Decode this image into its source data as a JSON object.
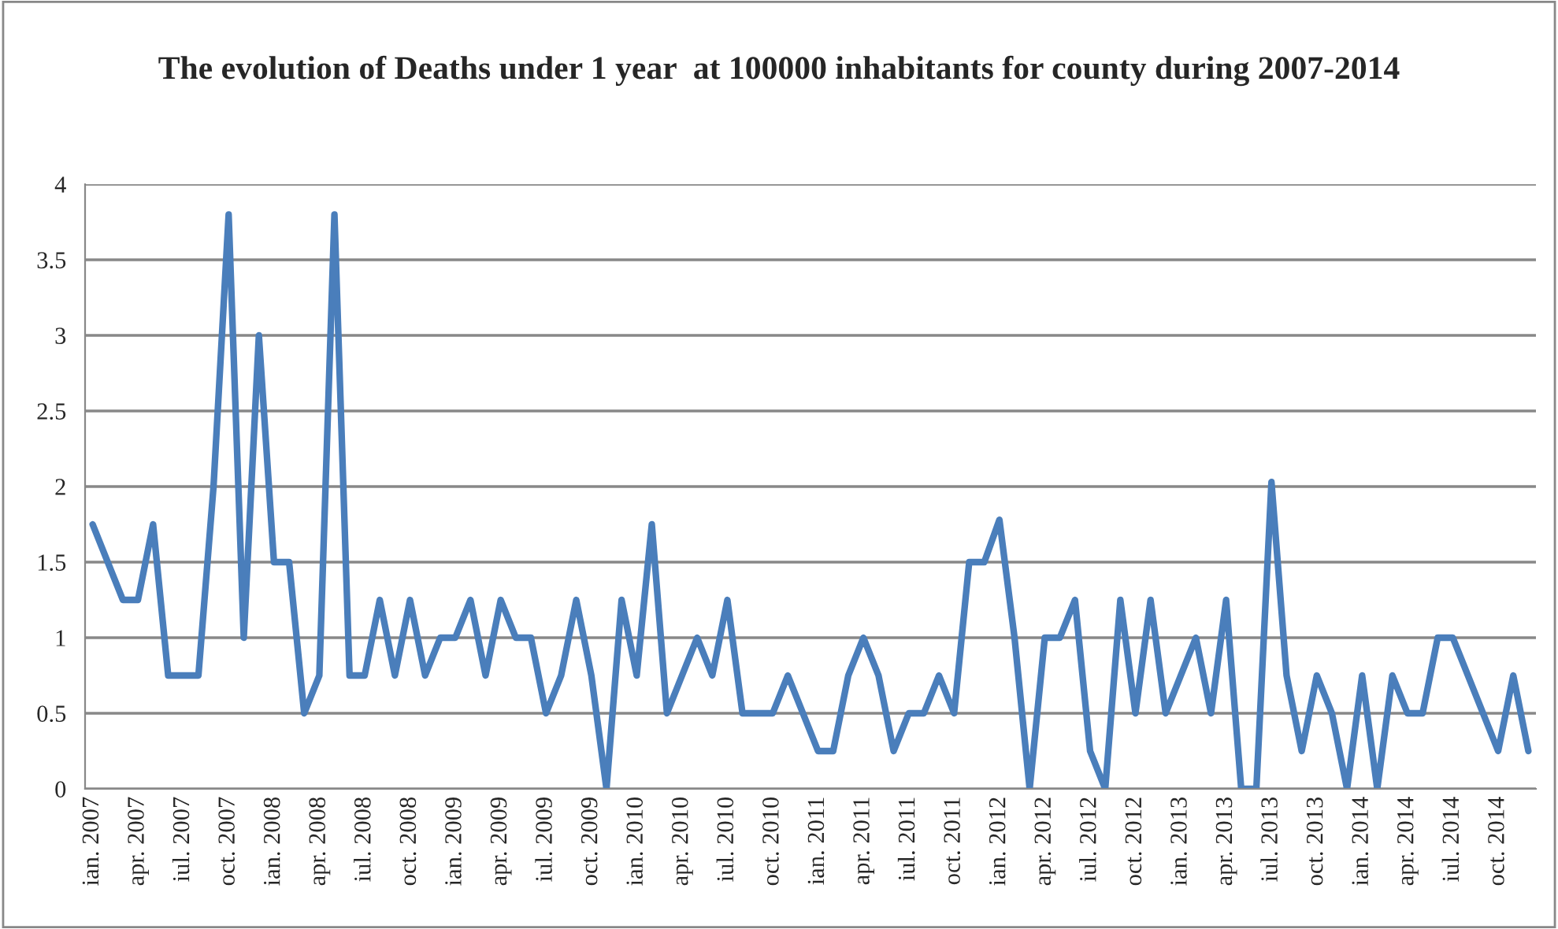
{
  "chart_data": {
    "type": "line",
    "title": "The evolution of Deaths under 1 year  at 100000 inhabitants for county during 2007-2014",
    "categories": [
      "ian. 2007",
      null,
      null,
      "apr. 2007",
      null,
      null,
      "iul. 2007",
      null,
      null,
      "oct. 2007",
      null,
      null,
      "ian. 2008",
      null,
      null,
      "apr. 2008",
      null,
      null,
      "iul. 2008",
      null,
      null,
      "oct. 2008",
      null,
      null,
      "ian. 2009",
      null,
      null,
      "apr. 2009",
      null,
      null,
      "iul. 2009",
      null,
      null,
      "oct. 2009",
      null,
      null,
      "ian. 2010",
      null,
      null,
      "apr. 2010",
      null,
      null,
      "iul. 2010",
      null,
      null,
      "oct. 2010",
      null,
      null,
      "ian. 2011",
      null,
      null,
      "apr. 2011",
      null,
      null,
      "iul. 2011",
      null,
      null,
      "oct. 2011",
      null,
      null,
      "ian. 2012",
      null,
      null,
      "apr. 2012",
      null,
      null,
      "iul. 2012",
      null,
      null,
      "oct. 2012",
      null,
      null,
      "ian. 2013",
      null,
      null,
      "apr. 2013",
      null,
      null,
      "iul. 2013",
      null,
      null,
      "oct. 2013",
      null,
      null,
      "ian. 2014",
      null,
      null,
      "apr. 2014",
      null,
      null,
      "iul. 2014",
      null,
      null,
      "oct. 2014",
      null,
      null
    ],
    "series": [
      {
        "color": "#4a7ebb",
        "values": [
          1.75,
          1.5,
          1.25,
          1.25,
          1.75,
          0.75,
          0.75,
          0.75,
          2.0,
          3.8,
          1.0,
          3.0,
          1.5,
          1.5,
          0.5,
          0.75,
          3.8,
          0.75,
          0.75,
          1.25,
          0.75,
          1.25,
          0.75,
          1.0,
          1.0,
          1.25,
          0.75,
          1.25,
          1.0,
          1.0,
          0.5,
          0.75,
          1.25,
          0.75,
          0.0,
          1.25,
          0.75,
          1.75,
          0.5,
          0.75,
          1.0,
          0.75,
          1.25,
          0.5,
          0.5,
          0.5,
          0.75,
          0.5,
          0.25,
          0.25,
          0.75,
          1.0,
          0.75,
          0.25,
          0.5,
          0.5,
          0.75,
          0.5,
          1.5,
          1.5,
          1.78,
          1.0,
          0.0,
          1.0,
          1.0,
          1.25,
          0.25,
          0.0,
          1.25,
          0.5,
          1.25,
          0.5,
          0.75,
          1.0,
          0.5,
          1.25,
          0.0,
          0.0,
          2.03,
          0.75,
          0.25,
          0.75,
          0.5,
          0.0,
          0.75,
          0.0,
          0.75,
          0.5,
          0.5,
          1.0,
          1.0,
          0.75,
          0.5,
          0.25,
          0.75,
          0.25
        ]
      }
    ],
    "ylim": [
      0,
      4
    ],
    "yticks": [
      0,
      0.5,
      1,
      1.5,
      2,
      2.5,
      3,
      3.5,
      4
    ],
    "grid": "y",
    "legend": false,
    "marker": "none",
    "line_style": "solid"
  }
}
